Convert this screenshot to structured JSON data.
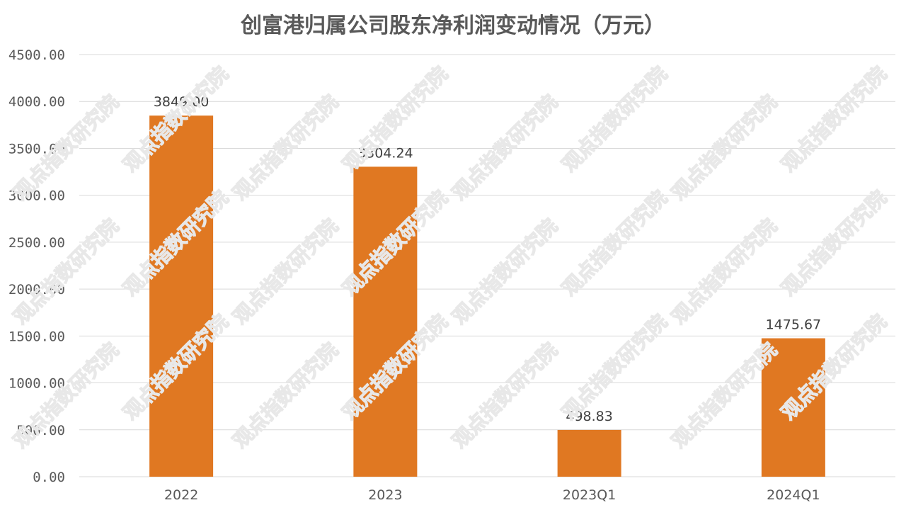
{
  "chart_data": {
    "type": "bar",
    "title": "创富港归属公司股东净利润变动情况（万元）",
    "categories": [
      "2022",
      "2023",
      "2023Q1",
      "2024Q1"
    ],
    "values": [
      3849.0,
      3304.24,
      498.83,
      1475.67
    ],
    "data_labels": [
      "3849.00",
      "3304.24",
      "498.83",
      "1475.67"
    ],
    "ylim": [
      0,
      4500
    ],
    "yticks": [
      0,
      500,
      1000,
      1500,
      2000,
      2500,
      3000,
      3500,
      4000,
      4500
    ],
    "ytick_labels": [
      "0.00",
      "500.00",
      "1000.00",
      "1500.00",
      "2000.00",
      "2500.00",
      "3000.00",
      "3500.00",
      "4000.00",
      "4500.00"
    ],
    "xlabel": "",
    "ylabel": "",
    "grid": true,
    "legend": "none",
    "bar_color": "#E07822"
  },
  "watermark": {
    "text": "观点指数研究院"
  }
}
